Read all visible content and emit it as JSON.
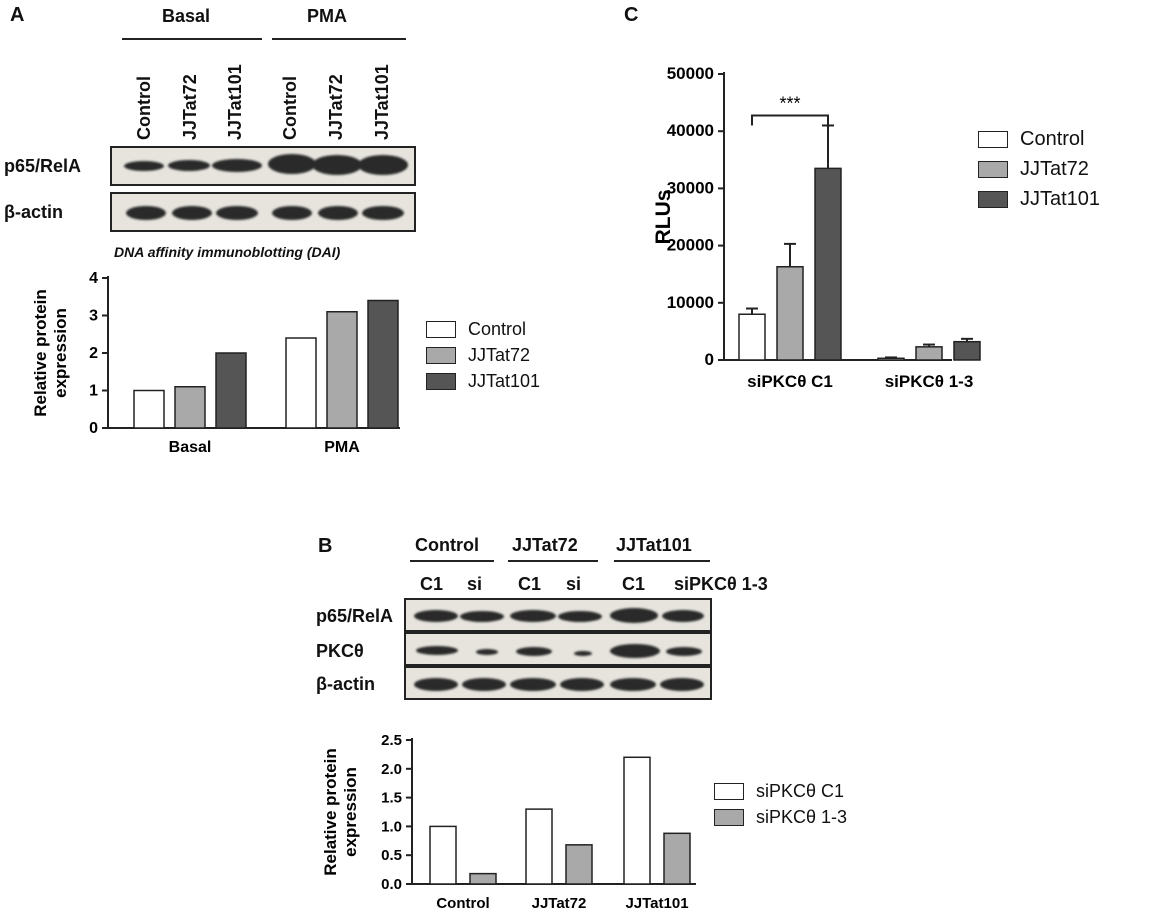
{
  "panels": {
    "a": {
      "letter": "A",
      "blot_groups": [
        "Basal",
        "PMA"
      ],
      "lane_labels": [
        "Control",
        "JJTat72",
        "JJTat101",
        "Control",
        "JJTat72",
        "JJTat101"
      ],
      "rows": [
        "p65/RelA",
        "β-actin"
      ],
      "caption": "DNA affinity immunoblotting (DAI)"
    },
    "b": {
      "letter": "B",
      "blot_groups": [
        "Control",
        "JJTat72",
        "JJTat101"
      ],
      "lane_labels": [
        "C1",
        "si",
        "C1",
        "si",
        "C1",
        "siPKCθ 1-3"
      ],
      "rows": [
        "p65/RelA",
        "PKCθ",
        "β-actin"
      ]
    },
    "c": {
      "letter": "C"
    }
  },
  "chart_data": [
    {
      "type": "bar",
      "panel": "A",
      "categories": [
        "Basal",
        "PMA"
      ],
      "series": [
        {
          "name": "Control",
          "values": [
            1.0,
            2.4
          ]
        },
        {
          "name": "JJTat72",
          "values": [
            1.1,
            3.1
          ]
        },
        {
          "name": "JJTat101",
          "values": [
            2.0,
            3.4
          ]
        }
      ],
      "ylabel": "Relative protein expression",
      "ylim": [
        0,
        4
      ],
      "yticks": [
        "0",
        "1",
        "2",
        "3",
        "4"
      ],
      "colors": [
        "#ffffff",
        "#a9a9a9",
        "#555555"
      ],
      "legend": "right"
    },
    {
      "type": "bar",
      "panel": "B",
      "categories": [
        "Control",
        "JJTat72",
        "JJTat101"
      ],
      "series": [
        {
          "name": "siPKCθ C1",
          "values": [
            1.0,
            1.3,
            2.2
          ]
        },
        {
          "name": "siPKCθ 1-3",
          "values": [
            0.18,
            0.68,
            0.88
          ]
        }
      ],
      "ylabel": "Relative protein expression",
      "ylim": [
        0,
        2.5
      ],
      "yticks": [
        "0.0",
        "0.5",
        "1.0",
        "1.5",
        "2.0",
        "2.5"
      ],
      "colors": [
        "#ffffff",
        "#a9a9a9"
      ],
      "legend": "right"
    },
    {
      "type": "bar",
      "panel": "C",
      "categories": [
        "siPKCθ C1",
        "siPKCθ 1-3"
      ],
      "series": [
        {
          "name": "Control",
          "values": [
            8000,
            300
          ],
          "errors": [
            1000,
            150
          ]
        },
        {
          "name": "JJTat72",
          "values": [
            16300,
            2300
          ],
          "errors": [
            4000,
            400
          ]
        },
        {
          "name": "JJTat101",
          "values": [
            33500,
            3200
          ],
          "errors": [
            7500,
            500
          ]
        }
      ],
      "ylabel": "RLUs",
      "ylim": [
        0,
        50000
      ],
      "yticks": [
        "0",
        "10000",
        "20000",
        "30000",
        "40000",
        "50000"
      ],
      "annotation": "***",
      "colors": [
        "#ffffff",
        "#a9a9a9",
        "#555555"
      ],
      "legend": "right"
    }
  ]
}
